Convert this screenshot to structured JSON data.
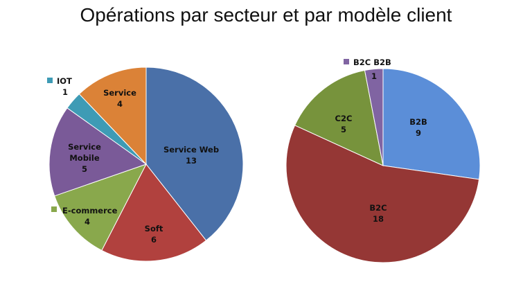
{
  "title": "Opérations par secteur et par modèle client",
  "chart_data": [
    {
      "type": "pie",
      "slices": [
        {
          "label": "Service Web",
          "value": 13,
          "color": "#4A70A8"
        },
        {
          "label": "Soft",
          "value": 6,
          "color": "#B1413E"
        },
        {
          "label": "E-commerce",
          "value": 4,
          "color": "#89A84C"
        },
        {
          "label": "Service Mobile",
          "value": 5,
          "color": "#7A5A98"
        },
        {
          "label": "IOT",
          "value": 1,
          "color": "#3E9BB5"
        },
        {
          "label": "Service",
          "value": 4,
          "color": "#DB8237"
        }
      ]
    },
    {
      "type": "pie",
      "slices": [
        {
          "label": "B2B",
          "value": 9,
          "color": "#5B8ED8"
        },
        {
          "label": "B2C",
          "value": 18,
          "color": "#953735"
        },
        {
          "label": "C2C",
          "value": 5,
          "color": "#77933C"
        },
        {
          "label": "B2C B2B",
          "value": 1,
          "color": "#8064A2"
        }
      ]
    }
  ]
}
